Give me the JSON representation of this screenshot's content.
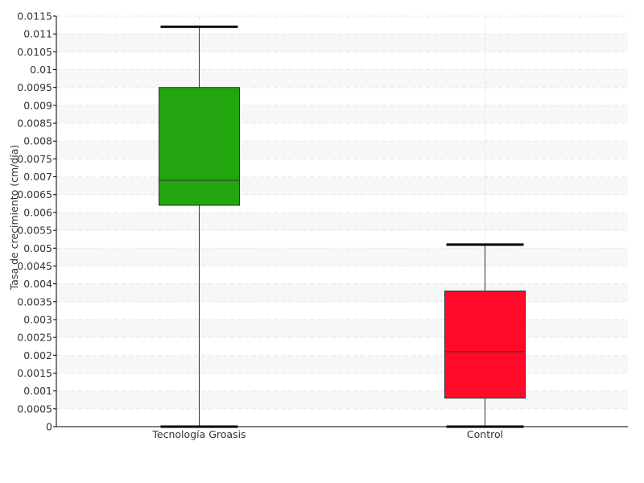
{
  "chart_data": {
    "type": "boxplot",
    "ylabel": "Tasa de crecimiento (cm/día)",
    "xlabel": "",
    "ylim": [
      0,
      0.0115
    ],
    "ytick_step": 0.0005,
    "yticks": [
      "0",
      "0.0005",
      "0.001",
      "0.0015",
      "0.002",
      "0.0025",
      "0.003",
      "0.0035",
      "0.004",
      "0.0045",
      "0.005",
      "0.0055",
      "0.006",
      "0.0065",
      "0.007",
      "0.0075",
      "0.008",
      "0.0085",
      "0.009",
      "0.0095",
      "0.01",
      "0.0105",
      "0.011",
      "0.0115"
    ],
    "grid": true,
    "categories": [
      "Tecnología Groasis",
      "Control"
    ],
    "boxes": [
      {
        "category": "Tecnología Groasis",
        "min": 0.0,
        "q1": 0.0062,
        "median": 0.0069,
        "q3": 0.0095,
        "max": 0.0112,
        "color": "#22a50e"
      },
      {
        "category": "Control",
        "min": 0.0,
        "q1": 0.0008,
        "median": 0.0021,
        "q3": 0.0038,
        "max": 0.0051,
        "color": "#ff0a28"
      }
    ]
  }
}
